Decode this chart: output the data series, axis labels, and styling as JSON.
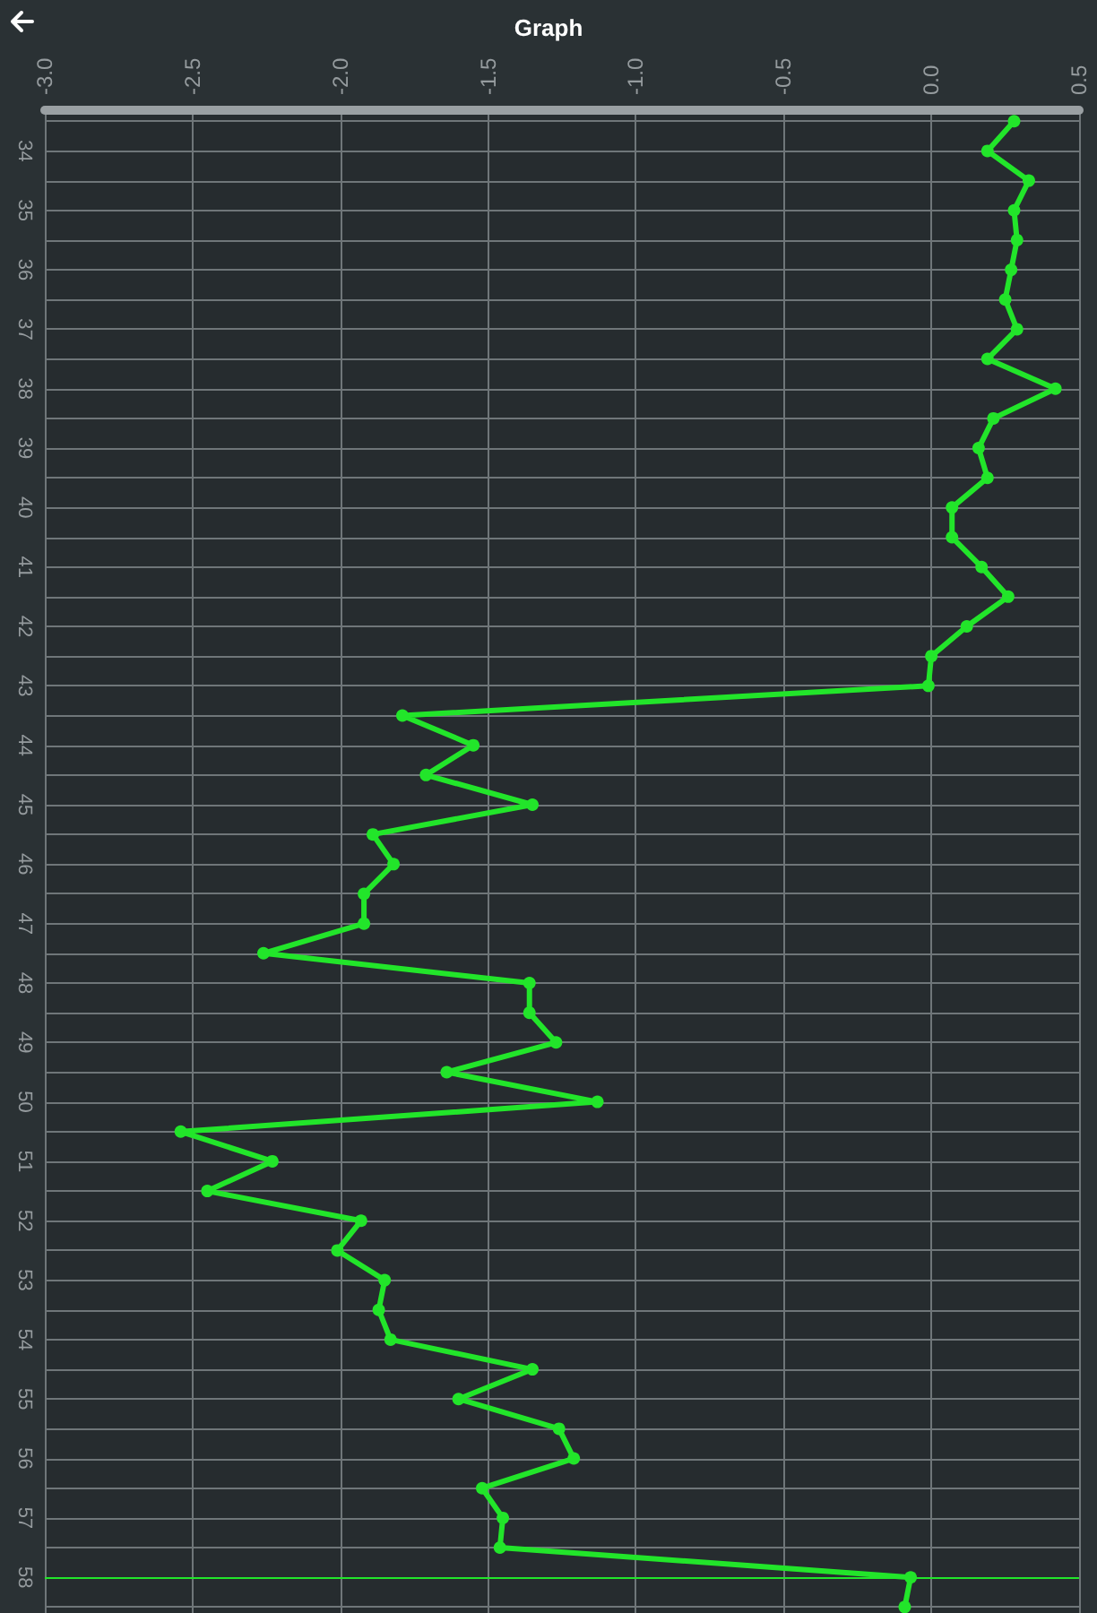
{
  "chart_data": {
    "type": "line",
    "title": "Graph",
    "x": [
      0.28,
      0.19,
      0.33,
      0.28,
      0.29,
      0.27,
      0.25,
      0.29,
      0.19,
      0.42,
      0.21,
      0.16,
      0.19,
      0.07,
      0.07,
      0.17,
      0.26,
      0.12,
      0.0,
      -0.01,
      -1.79,
      -1.55,
      -1.71,
      -1.35,
      -1.89,
      -1.82,
      -1.92,
      -1.92,
      -2.26,
      -1.36,
      -1.36,
      -1.27,
      -1.64,
      -1.13,
      -2.54,
      -2.23,
      -2.45,
      -1.93,
      -2.01,
      -1.85,
      -1.87,
      -1.83,
      -1.35,
      -1.6,
      -1.26,
      -1.21,
      -1.52,
      -1.45,
      -1.46,
      -0.07,
      -0.09
    ],
    "series": [
      {
        "color": "#22e52a",
        "values": [
          33.5,
          34,
          34.5,
          35,
          35.5,
          36,
          36.5,
          37,
          37.5,
          38,
          38.5,
          39,
          39.5,
          40,
          40.5,
          41,
          41.5,
          42,
          42.5,
          43,
          43.5,
          44,
          44.5,
          45,
          45.5,
          46,
          46.5,
          47,
          47.5,
          48,
          48.5,
          49,
          49.5,
          50,
          50.5,
          51,
          51.5,
          52,
          52.5,
          53,
          53.5,
          54,
          54.5,
          55,
          55.5,
          56,
          56.5,
          57,
          57.5,
          58,
          58.5
        ]
      }
    ],
    "xlim": [
      -3.0,
      0.5
    ],
    "xticks": [
      {
        "value": -3,
        "label": "-3.0"
      },
      -2.5,
      {
        "value": -2,
        "label": "-2.0"
      },
      -1.5,
      {
        "value": -1,
        "label": "-1.0"
      },
      -0.5,
      {
        "value": 0,
        "label": "0.0"
      },
      0.5
    ],
    "ylim": [
      58.6,
      33.3
    ],
    "yticks": [
      {
        "value": 33.5,
        "label": null
      },
      34,
      {
        "value": 34.5,
        "label": null
      },
      35,
      {
        "value": 35.5,
        "label": null
      },
      36,
      {
        "value": 36.5,
        "label": null
      },
      37,
      {
        "value": 37.5,
        "label": null
      },
      38,
      {
        "value": 38.5,
        "label": null
      },
      39,
      {
        "value": 39.5,
        "label": null
      },
      40,
      {
        "value": 40.5,
        "label": null
      },
      41,
      {
        "value": 41.5,
        "label": null
      },
      42,
      {
        "value": 42.5,
        "label": null
      },
      43,
      {
        "value": 43.5,
        "label": null
      },
      44,
      {
        "value": 44.5,
        "label": null
      },
      45,
      {
        "value": 45.5,
        "label": null
      },
      46,
      {
        "value": 46.5,
        "label": null
      },
      47,
      {
        "value": 47.5,
        "label": null
      },
      48,
      {
        "value": 48.5,
        "label": null
      },
      49,
      {
        "value": 49.5,
        "label": null
      },
      50,
      {
        "value": 50.5,
        "label": null
      },
      51,
      {
        "value": 51.5,
        "label": null
      },
      52,
      {
        "value": 52.5,
        "label": null
      },
      53,
      {
        "value": 53.5,
        "label": null
      },
      54,
      {
        "value": 54.5,
        "label": null
      },
      55,
      {
        "value": 55.5,
        "label": null
      },
      56,
      {
        "value": 56.5,
        "label": null
      },
      57,
      {
        "value": 57.5,
        "label": null
      },
      58,
      {
        "value": 58.5,
        "label": null
      }
    ],
    "ref_lines": [
      {
        "axis": "y",
        "value": 58,
        "color": "#22e52a"
      }
    ],
    "grid": true,
    "marker": "circle",
    "line_style": "solid"
  }
}
